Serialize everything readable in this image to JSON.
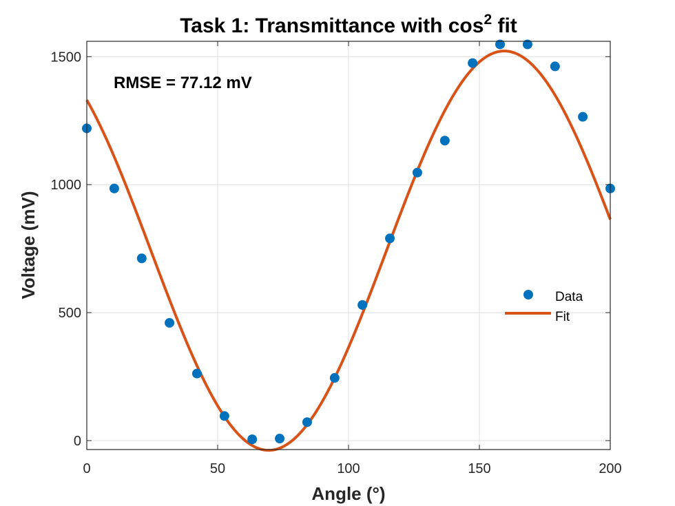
{
  "chart_data": {
    "type": "scatter",
    "title": "Task 1: Transmittance with cos",
    "title_superscript": "2",
    "title_suffix": " fit",
    "xlabel": "Angle (°)",
    "ylabel": "Voltage (mV)",
    "xlim": [
      0,
      200
    ],
    "ylim": [
      -35,
      1560
    ],
    "xticks": [
      0,
      50,
      100,
      150,
      200
    ],
    "yticks": [
      0,
      500,
      1000,
      1500
    ],
    "xtick_labels": [
      "0",
      "50",
      "100",
      "150",
      "200"
    ],
    "ytick_labels": [
      "0",
      "500",
      "1000",
      "1500"
    ],
    "grid": true,
    "legend_position": "right",
    "annotation": "RMSE = 77.12 mV",
    "series": [
      {
        "name": "Data",
        "kind": "scatter",
        "color": "#0072BD",
        "x": [
          0,
          10.5,
          21,
          31.6,
          42.1,
          52.6,
          63.2,
          73.7,
          84.2,
          94.7,
          105.3,
          115.8,
          126.3,
          136.8,
          147.4,
          157.9,
          168.4,
          178.9,
          189.5,
          200
        ],
        "y": [
          1220,
          985,
          712,
          460,
          262,
          96,
          5,
          8,
          72,
          245,
          530,
          790,
          1047,
          1172,
          1475,
          1548,
          1548,
          1462,
          1265,
          985
        ]
      },
      {
        "name": "Fit",
        "kind": "line",
        "color": "#D95319",
        "model": "A*cos^2(x - phi) + C",
        "A": 1560,
        "phi_deg": 159.5,
        "C": -38
      }
    ]
  }
}
